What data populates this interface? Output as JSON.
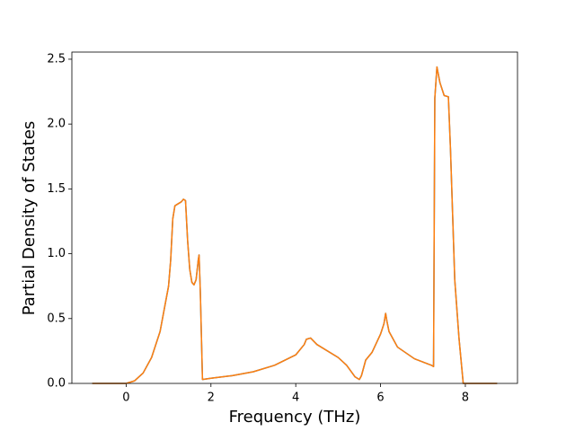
{
  "chart_data": {
    "type": "line",
    "x_label": "Frequency (THz)",
    "y_label": "Partial Density of States",
    "x": [
      -0.8,
      0,
      0.2,
      0.4,
      0.6,
      0.8,
      1.0,
      1.05,
      1.1,
      1.15,
      1.2,
      1.3,
      1.35,
      1.4,
      1.45,
      1.5,
      1.55,
      1.6,
      1.65,
      1.7,
      1.72,
      1.75,
      1.8,
      2.0,
      2.5,
      3.0,
      3.5,
      4.0,
      4.2,
      4.25,
      4.35,
      4.5,
      5.0,
      5.2,
      5.4,
      5.5,
      5.55,
      5.65,
      5.8,
      6.0,
      6.08,
      6.12,
      6.15,
      6.2,
      6.4,
      6.8,
      7.2,
      7.25,
      7.28,
      7.33,
      7.4,
      7.5,
      7.6,
      7.65,
      7.75,
      7.85,
      7.95,
      8.75
    ],
    "series": [
      {
        "color": "#1f77b4",
        "values": [
          0,
          0,
          0.02,
          0.08,
          0.2,
          0.4,
          0.75,
          0.95,
          1.27,
          1.37,
          1.38,
          1.4,
          1.42,
          1.41,
          1.1,
          0.88,
          0.78,
          0.76,
          0.8,
          0.95,
          0.99,
          0.7,
          0.03,
          0.04,
          0.06,
          0.09,
          0.14,
          0.22,
          0.3,
          0.34,
          0.35,
          0.3,
          0.2,
          0.14,
          0.05,
          0.03,
          0.06,
          0.18,
          0.24,
          0.38,
          0.46,
          0.54,
          0.48,
          0.4,
          0.28,
          0.19,
          0.14,
          0.13,
          2.2,
          2.44,
          2.32,
          2.22,
          2.21,
          1.8,
          0.8,
          0.35,
          0,
          0
        ]
      },
      {
        "color": "#ff7f0e",
        "values": [
          0,
          0,
          0.02,
          0.08,
          0.2,
          0.4,
          0.75,
          0.95,
          1.27,
          1.37,
          1.38,
          1.4,
          1.42,
          1.41,
          1.1,
          0.88,
          0.78,
          0.76,
          0.8,
          0.95,
          0.99,
          0.7,
          0.03,
          0.04,
          0.06,
          0.09,
          0.14,
          0.22,
          0.3,
          0.34,
          0.35,
          0.3,
          0.2,
          0.14,
          0.05,
          0.03,
          0.06,
          0.18,
          0.24,
          0.38,
          0.46,
          0.54,
          0.48,
          0.4,
          0.28,
          0.19,
          0.14,
          0.13,
          2.2,
          2.44,
          2.32,
          2.22,
          2.21,
          1.8,
          0.8,
          0.35,
          0,
          0
        ]
      }
    ],
    "xlim": [
      -1.28,
      9.23
    ],
    "ylim": [
      0,
      2.555
    ],
    "xticks": [
      0,
      2,
      4,
      6,
      8
    ],
    "yticks": [
      {
        "value": 0,
        "label": "0.0"
      },
      {
        "value": 0.5,
        "label": "0.5"
      },
      {
        "value": 1,
        "label": "1.0"
      },
      {
        "value": 1.5,
        "label": "1.5"
      },
      {
        "value": 2,
        "label": "2.0"
      },
      {
        "value": 2.5,
        "label": "2.5"
      }
    ]
  }
}
